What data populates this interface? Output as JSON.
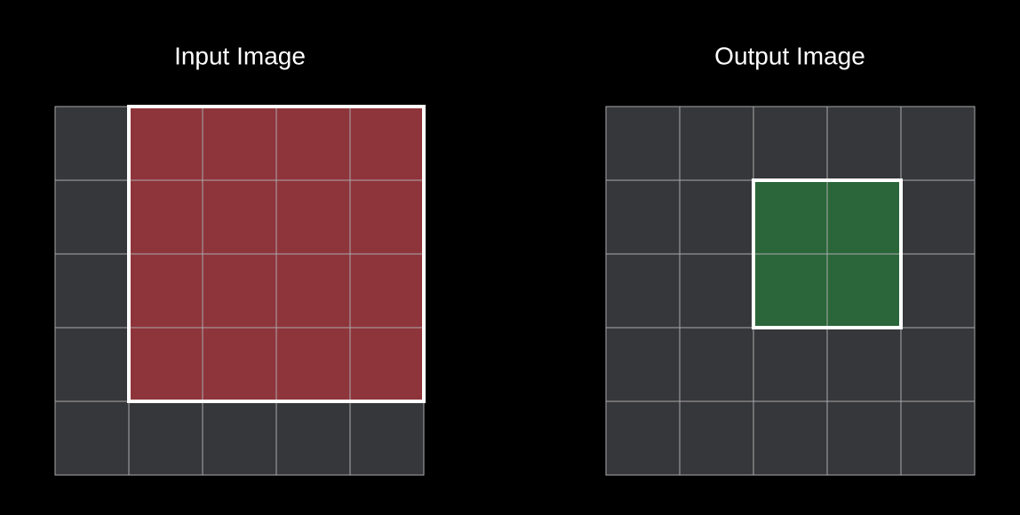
{
  "panels": [
    {
      "title": "Input Image"
    },
    {
      "title": "Output Image"
    }
  ]
}
